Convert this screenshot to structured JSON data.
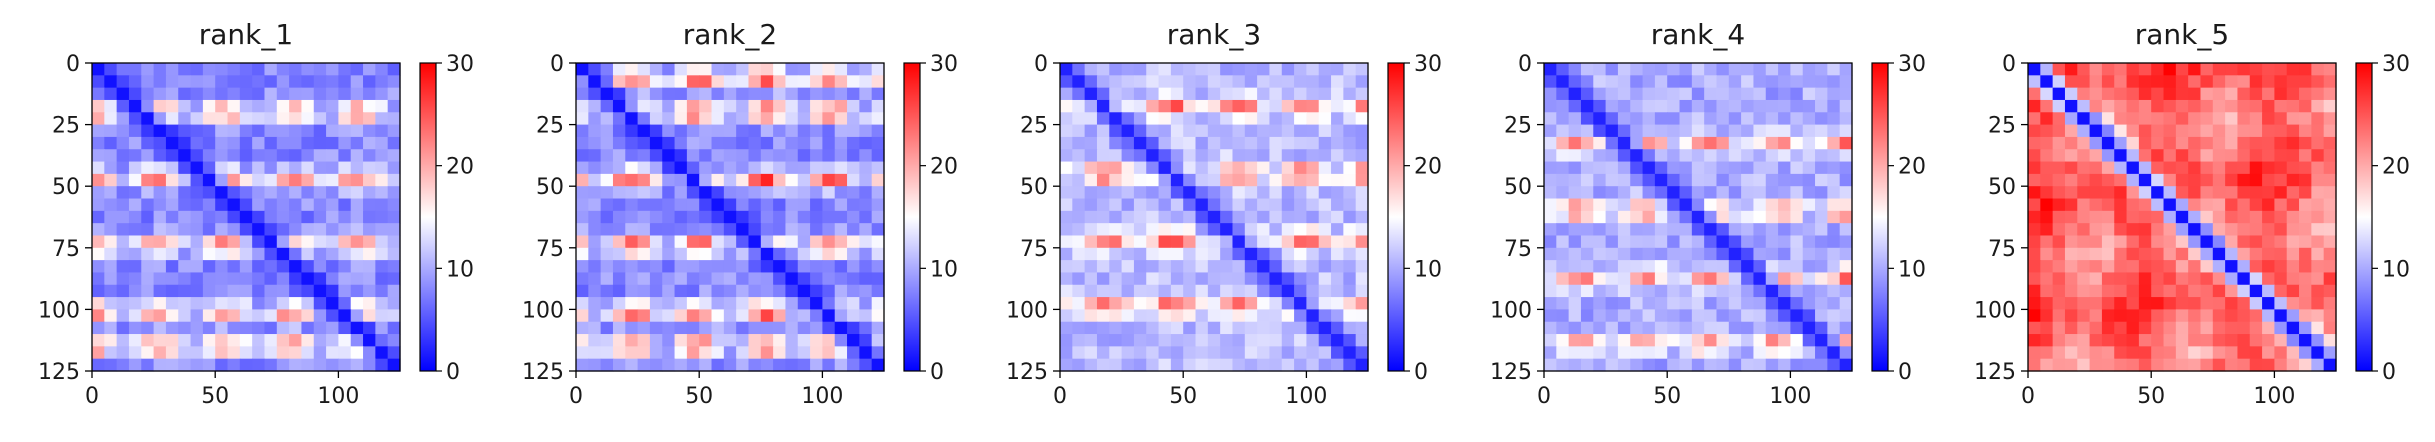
{
  "chart_data": [
    {
      "type": "heatmap",
      "title": "rank_1",
      "x_ticks": [
        "0",
        "50",
        "100"
      ],
      "y_ticks": [
        "0",
        "25",
        "50",
        "75",
        "100",
        "125"
      ],
      "x_range": [
        0,
        125
      ],
      "y_range": [
        0,
        125
      ],
      "colorbar": {
        "colormap": "bwr",
        "range": [
          0,
          30
        ],
        "ticks": [
          "0",
          "10",
          "20",
          "30"
        ]
      },
      "pattern": {
        "diagonal_value": 1,
        "off_diagonal_base": 8,
        "periodic_band_rows": [
          20,
          47,
          74,
          101,
          115
        ],
        "band_peak_value": 24
      }
    },
    {
      "type": "heatmap",
      "title": "rank_2",
      "x_ticks": [
        "0",
        "50",
        "100"
      ],
      "y_ticks": [
        "0",
        "25",
        "50",
        "75",
        "100",
        "125"
      ],
      "x_range": [
        0,
        125
      ],
      "y_range": [
        0,
        125
      ],
      "colorbar": {
        "colormap": "bwr",
        "range": [
          0,
          30
        ],
        "ticks": [
          "0",
          "10",
          "20",
          "30"
        ]
      },
      "pattern": {
        "diagonal_value": 1,
        "off_diagonal_base": 8,
        "periodic_band_rows": [
          6,
          20,
          47,
          74,
          101,
          115
        ],
        "band_peak_value": 26
      }
    },
    {
      "type": "heatmap",
      "title": "rank_3",
      "x_ticks": [
        "0",
        "50",
        "100"
      ],
      "y_ticks": [
        "0",
        "25",
        "50",
        "75",
        "100",
        "125"
      ],
      "x_range": [
        0,
        125
      ],
      "y_range": [
        0,
        125
      ],
      "colorbar": {
        "colormap": "bwr",
        "range": [
          0,
          30
        ],
        "ticks": [
          "0",
          "10",
          "20",
          "30"
        ]
      },
      "pattern": {
        "diagonal_value": 2,
        "off_diagonal_base": 11,
        "periodic_band_rows": [
          18,
          45,
          72,
          99
        ],
        "band_peak_value": 25
      }
    },
    {
      "type": "heatmap",
      "title": "rank_4",
      "x_ticks": [
        "0",
        "50",
        "100"
      ],
      "y_ticks": [
        "0",
        "25",
        "50",
        "75",
        "100",
        "125"
      ],
      "x_range": [
        0,
        125
      ],
      "y_range": [
        0,
        125
      ],
      "colorbar": {
        "colormap": "bwr",
        "range": [
          0,
          30
        ],
        "ticks": [
          "0",
          "10",
          "20",
          "30"
        ]
      },
      "pattern": {
        "diagonal_value": 2,
        "off_diagonal_base": 10,
        "periodic_band_rows": [
          33,
          60,
          87,
          114
        ],
        "band_peak_value": 23
      }
    },
    {
      "type": "heatmap",
      "title": "rank_5",
      "x_ticks": [
        "0",
        "50",
        "100"
      ],
      "y_ticks": [
        "0",
        "25",
        "50",
        "75",
        "100",
        "125"
      ],
      "x_range": [
        0,
        125
      ],
      "y_range": [
        0,
        125
      ],
      "colorbar": {
        "colormap": "bwr",
        "range": [
          0,
          30
        ],
        "ticks": [
          "0",
          "10",
          "20",
          "30"
        ]
      },
      "pattern": {
        "diagonal_value": 1,
        "off_diagonal_base": 24,
        "periodic_band_rows": [],
        "band_peak_value": 24
      }
    }
  ]
}
